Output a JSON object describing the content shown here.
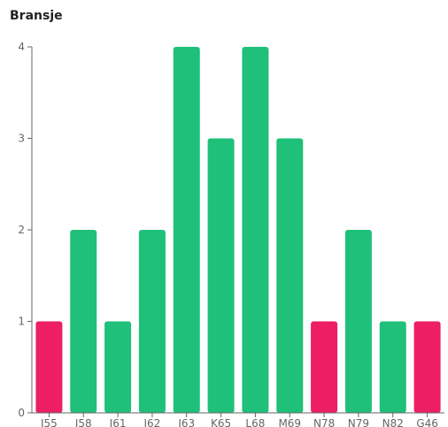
{
  "chart_data": {
    "type": "bar",
    "title": "Bransje",
    "xlabel": "",
    "ylabel": "",
    "categories": [
      "I55",
      "I58",
      "I61",
      "I62",
      "I63",
      "K65",
      "L68",
      "M69",
      "N78",
      "N79",
      "N82",
      "G46"
    ],
    "values": [
      1,
      2,
      1,
      2,
      4,
      3,
      4,
      3,
      1,
      2,
      1,
      1
    ],
    "bar_colors": [
      "#ED1E63",
      "#1FC079",
      "#1FC079",
      "#1FC079",
      "#1FC079",
      "#1FC079",
      "#1FC079",
      "#1FC079",
      "#ED1E63",
      "#1FC079",
      "#1FC079",
      "#ED1E63"
    ],
    "yticks": [
      0,
      1,
      2,
      3,
      4
    ],
    "ylim": [
      0,
      4
    ],
    "grid": false,
    "legend": "none"
  }
}
